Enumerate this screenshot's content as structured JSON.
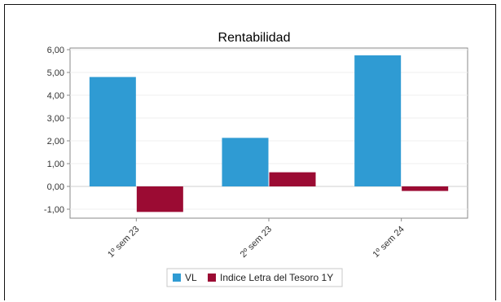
{
  "chart_data": {
    "type": "bar",
    "title": "Rentabilidad",
    "categories": [
      "1º sem 23",
      "2º sem 23",
      "1º sem 24"
    ],
    "series": [
      {
        "name": "VL",
        "values": [
          4.8,
          2.13,
          5.75
        ],
        "color": "#2f9bd3"
      },
      {
        "name": "Indice Letra del Tesoro 1Y",
        "values": [
          -1.12,
          0.62,
          -0.2
        ],
        "color": "#9b0b33"
      }
    ],
    "y_ticks": [
      "-1,00",
      "0,00",
      "1,00",
      "2,00",
      "3,00",
      "4,00",
      "5,00",
      "6,00"
    ],
    "ylim": [
      -1.35,
      6.1
    ],
    "grid": true,
    "legend": "bottom"
  }
}
